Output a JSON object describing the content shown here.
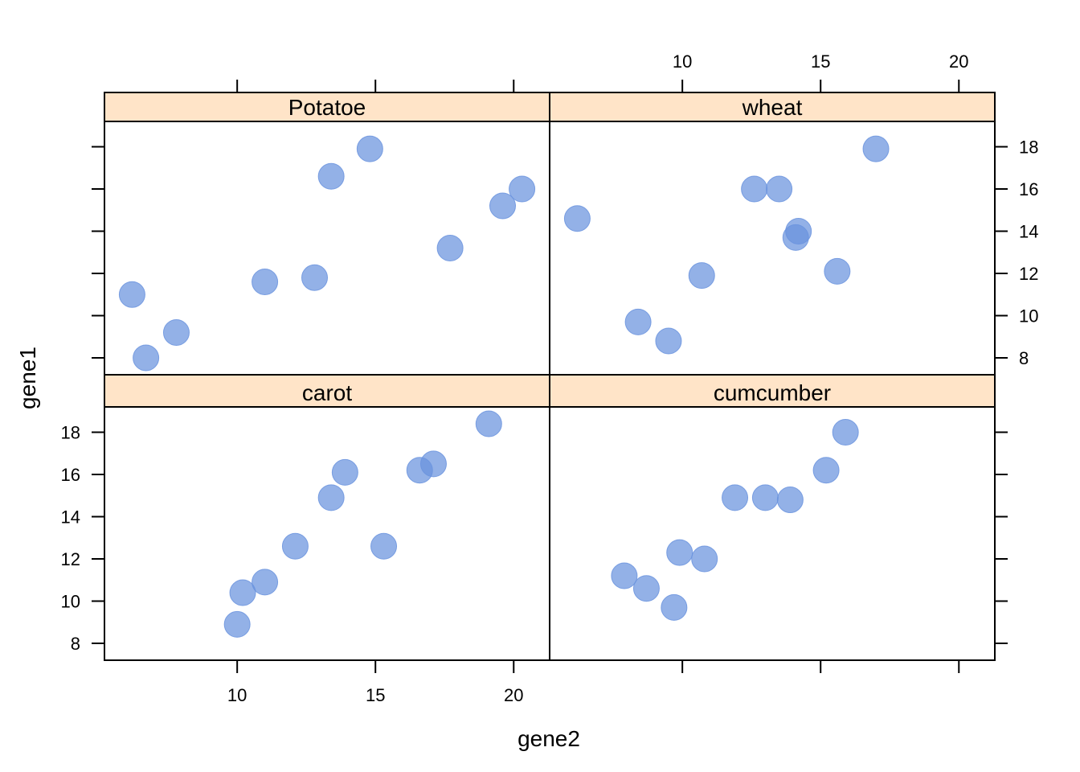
{
  "chart_data": {
    "type": "scatter",
    "xlabel": "gene2",
    "ylabel": "gene1",
    "xlim": [
      5.2,
      21.3
    ],
    "ylim": [
      7.2,
      19.2
    ],
    "x_ticks": [
      10,
      15,
      20
    ],
    "y_ticks": [
      8,
      10,
      12,
      14,
      16,
      18
    ],
    "point_color": "#6A93DE",
    "strip_color": "#FFE4C8",
    "panels": [
      {
        "name": "Potatoe",
        "x": [
          6.2,
          6.7,
          7.8,
          11.0,
          12.8,
          13.4,
          14.8,
          17.7,
          19.6,
          20.3
        ],
        "y": [
          11.0,
          8.0,
          9.2,
          11.6,
          11.8,
          16.6,
          17.9,
          13.2,
          15.2,
          16.0
        ]
      },
      {
        "name": "wheat",
        "x": [
          6.2,
          8.4,
          9.5,
          10.7,
          12.6,
          13.5,
          14.1,
          14.2,
          15.6,
          17.0
        ],
        "y": [
          14.6,
          9.7,
          8.8,
          11.9,
          16.0,
          16.0,
          13.7,
          14.0,
          12.1,
          17.9
        ]
      },
      {
        "name": "carot",
        "x": [
          10.0,
          10.2,
          11.0,
          12.1,
          13.4,
          13.9,
          15.3,
          16.6,
          17.1,
          19.1
        ],
        "y": [
          8.9,
          10.4,
          10.9,
          12.6,
          14.9,
          16.1,
          12.6,
          16.2,
          16.5,
          18.4
        ]
      },
      {
        "name": "cumcumber",
        "x": [
          7.9,
          8.7,
          9.7,
          9.9,
          10.8,
          11.9,
          13.0,
          13.9,
          15.2,
          15.9
        ],
        "y": [
          11.2,
          10.6,
          9.7,
          12.3,
          12.0,
          14.9,
          14.9,
          14.8,
          16.2,
          18.0
        ]
      }
    ]
  }
}
